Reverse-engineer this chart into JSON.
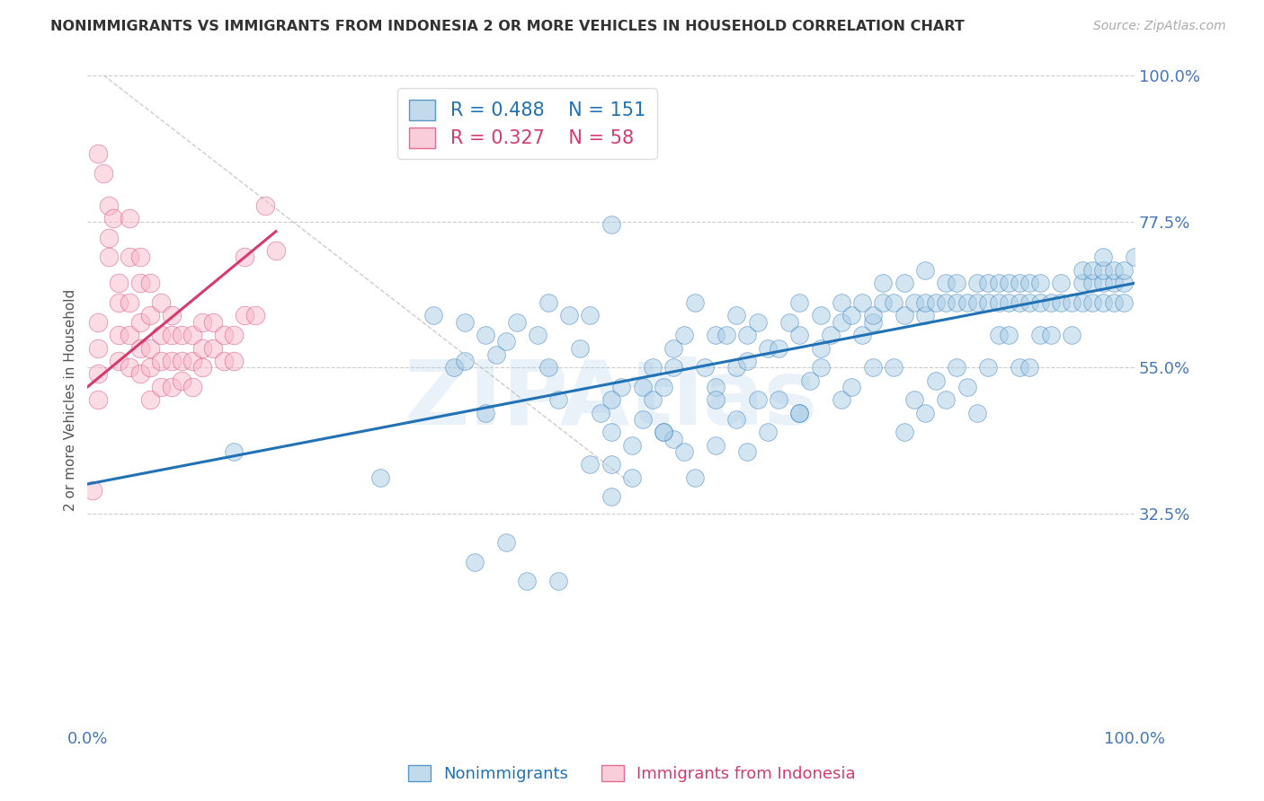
{
  "title": "NONIMMIGRANTS VS IMMIGRANTS FROM INDONESIA 2 OR MORE VEHICLES IN HOUSEHOLD CORRELATION CHART",
  "source": "Source: ZipAtlas.com",
  "ylabel": "2 or more Vehicles in Household",
  "xlim": [
    0.0,
    1.0
  ],
  "ylim": [
    0.0,
    1.0
  ],
  "ytick_values": [
    0.0,
    0.325,
    0.55,
    0.775,
    1.0
  ],
  "ytick_labels_right": [
    "",
    "32.5%",
    "55.0%",
    "77.5%",
    "100.0%"
  ],
  "watermark": "ZIPAtlas",
  "blue_color": "#a8cce4",
  "pink_color": "#f9b8cb",
  "blue_line_color": "#2171b5",
  "pink_line_color": "#d63a6e",
  "diag_line_color": "#cccccc",
  "legend_R_blue": "0.488",
  "legend_N_blue": "151",
  "legend_R_pink": "0.327",
  "legend_N_pink": "58",
  "blue_scatter_x": [
    0.14,
    0.28,
    0.33,
    0.35,
    0.36,
    0.36,
    0.38,
    0.38,
    0.39,
    0.4,
    0.4,
    0.41,
    0.43,
    0.44,
    0.44,
    0.45,
    0.46,
    0.47,
    0.48,
    0.48,
    0.49,
    0.5,
    0.5,
    0.5,
    0.5,
    0.51,
    0.52,
    0.52,
    0.53,
    0.53,
    0.54,
    0.54,
    0.55,
    0.55,
    0.56,
    0.56,
    0.56,
    0.57,
    0.57,
    0.58,
    0.58,
    0.59,
    0.6,
    0.6,
    0.6,
    0.61,
    0.62,
    0.62,
    0.63,
    0.63,
    0.63,
    0.64,
    0.64,
    0.65,
    0.65,
    0.66,
    0.66,
    0.67,
    0.68,
    0.68,
    0.68,
    0.69,
    0.7,
    0.7,
    0.7,
    0.71,
    0.72,
    0.72,
    0.72,
    0.73,
    0.73,
    0.74,
    0.74,
    0.75,
    0.75,
    0.75,
    0.76,
    0.76,
    0.77,
    0.77,
    0.78,
    0.78,
    0.78,
    0.79,
    0.79,
    0.8,
    0.8,
    0.8,
    0.8,
    0.81,
    0.81,
    0.82,
    0.82,
    0.82,
    0.83,
    0.83,
    0.83,
    0.84,
    0.84,
    0.85,
    0.85,
    0.85,
    0.86,
    0.86,
    0.86,
    0.87,
    0.87,
    0.87,
    0.88,
    0.88,
    0.88,
    0.89,
    0.89,
    0.89,
    0.9,
    0.9,
    0.9,
    0.91,
    0.91,
    0.91,
    0.92,
    0.92,
    0.93,
    0.93,
    0.94,
    0.94,
    0.95,
    0.95,
    0.95,
    0.96,
    0.96,
    0.96,
    0.97,
    0.97,
    0.97,
    0.97,
    0.98,
    0.98,
    0.98,
    0.99,
    0.99,
    0.99,
    1.0,
    0.5,
    0.55,
    0.6,
    0.62,
    0.68,
    0.45,
    0.37,
    0.42
  ],
  "blue_scatter_y": [
    0.42,
    0.38,
    0.63,
    0.55,
    0.62,
    0.56,
    0.6,
    0.48,
    0.57,
    0.59,
    0.28,
    0.62,
    0.6,
    0.55,
    0.65,
    0.5,
    0.63,
    0.58,
    0.63,
    0.4,
    0.48,
    0.4,
    0.35,
    0.45,
    0.77,
    0.52,
    0.38,
    0.43,
    0.47,
    0.52,
    0.5,
    0.55,
    0.52,
    0.45,
    0.44,
    0.55,
    0.58,
    0.42,
    0.6,
    0.65,
    0.38,
    0.55,
    0.52,
    0.6,
    0.43,
    0.6,
    0.55,
    0.63,
    0.42,
    0.56,
    0.6,
    0.5,
    0.62,
    0.58,
    0.45,
    0.58,
    0.5,
    0.62,
    0.48,
    0.6,
    0.65,
    0.53,
    0.58,
    0.63,
    0.55,
    0.6,
    0.62,
    0.65,
    0.5,
    0.63,
    0.52,
    0.6,
    0.65,
    0.55,
    0.62,
    0.63,
    0.65,
    0.68,
    0.65,
    0.55,
    0.45,
    0.63,
    0.68,
    0.5,
    0.65,
    0.48,
    0.63,
    0.65,
    0.7,
    0.53,
    0.65,
    0.5,
    0.65,
    0.68,
    0.55,
    0.65,
    0.68,
    0.52,
    0.65,
    0.48,
    0.65,
    0.68,
    0.55,
    0.65,
    0.68,
    0.6,
    0.65,
    0.68,
    0.6,
    0.65,
    0.68,
    0.55,
    0.65,
    0.68,
    0.55,
    0.65,
    0.68,
    0.6,
    0.65,
    0.68,
    0.6,
    0.65,
    0.68,
    0.65,
    0.6,
    0.65,
    0.65,
    0.68,
    0.7,
    0.65,
    0.68,
    0.7,
    0.65,
    0.68,
    0.7,
    0.72,
    0.65,
    0.68,
    0.7,
    0.65,
    0.68,
    0.7,
    0.72,
    0.5,
    0.45,
    0.5,
    0.47,
    0.48,
    0.22,
    0.25,
    0.22
  ],
  "pink_scatter_x": [
    0.005,
    0.01,
    0.01,
    0.01,
    0.01,
    0.01,
    0.015,
    0.02,
    0.02,
    0.02,
    0.025,
    0.03,
    0.03,
    0.03,
    0.03,
    0.04,
    0.04,
    0.04,
    0.04,
    0.04,
    0.05,
    0.05,
    0.05,
    0.05,
    0.05,
    0.06,
    0.06,
    0.06,
    0.06,
    0.06,
    0.07,
    0.07,
    0.07,
    0.07,
    0.08,
    0.08,
    0.08,
    0.08,
    0.09,
    0.09,
    0.09,
    0.1,
    0.1,
    0.1,
    0.11,
    0.11,
    0.11,
    0.12,
    0.12,
    0.13,
    0.13,
    0.14,
    0.14,
    0.15,
    0.15,
    0.16,
    0.17,
    0.18
  ],
  "pink_scatter_y": [
    0.36,
    0.62,
    0.58,
    0.54,
    0.5,
    0.88,
    0.85,
    0.8,
    0.75,
    0.72,
    0.78,
    0.68,
    0.65,
    0.6,
    0.56,
    0.78,
    0.72,
    0.65,
    0.6,
    0.55,
    0.72,
    0.68,
    0.62,
    0.58,
    0.54,
    0.68,
    0.63,
    0.58,
    0.55,
    0.5,
    0.65,
    0.6,
    0.56,
    0.52,
    0.63,
    0.6,
    0.56,
    0.52,
    0.6,
    0.56,
    0.53,
    0.6,
    0.56,
    0.52,
    0.62,
    0.58,
    0.55,
    0.62,
    0.58,
    0.6,
    0.56,
    0.6,
    0.56,
    0.72,
    0.63,
    0.63,
    0.8,
    0.73
  ],
  "blue_line_x0": 0.0,
  "blue_line_y0": 0.37,
  "blue_line_x1": 1.0,
  "blue_line_y1": 0.68,
  "pink_line_x0": 0.0,
  "pink_line_y0": 0.52,
  "pink_line_x1": 0.18,
  "pink_line_y1": 0.76,
  "diag_line_x0": 0.0,
  "diag_line_y0": 1.02,
  "diag_line_x1": 0.52,
  "diag_line_y1": 0.37,
  "background_color": "#ffffff",
  "title_color": "#333333",
  "source_color": "#aaaaaa",
  "axis_color": "#4477bb"
}
